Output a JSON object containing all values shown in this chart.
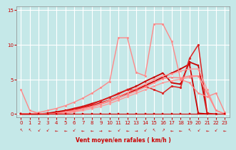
{
  "xlabel": "Vent moyen/en rafales ( km/h )",
  "xlim": [
    -0.5,
    23.5
  ],
  "ylim": [
    -0.5,
    15.5
  ],
  "yticks": [
    0,
    5,
    10,
    15
  ],
  "xticks": [
    0,
    1,
    2,
    3,
    4,
    5,
    6,
    7,
    8,
    9,
    10,
    11,
    12,
    13,
    14,
    15,
    16,
    17,
    18,
    19,
    20,
    21,
    22,
    23
  ],
  "bg_color": "#c5e8e8",
  "grid_color": "#ffffff",
  "series": [
    {
      "comment": "dark red linear line 1 - goes to ~7.5 at x=19",
      "x": [
        0,
        1,
        2,
        3,
        4,
        5,
        6,
        7,
        8,
        9,
        10,
        11,
        12,
        13,
        14,
        15,
        16,
        17,
        18,
        19,
        20,
        21
      ],
      "y": [
        0,
        0,
        0,
        0,
        0.2,
        0.4,
        0.6,
        0.9,
        1.2,
        1.6,
        2.0,
        2.5,
        3.0,
        3.5,
        4.1,
        4.7,
        5.3,
        5.9,
        6.5,
        7.2,
        0.1,
        0
      ],
      "color": "#cc0000",
      "lw": 1.3,
      "marker": "s",
      "ms": 2.0
    },
    {
      "comment": "dark red linear line 2 - slightly different slope to ~7 at x=20",
      "x": [
        0,
        1,
        2,
        3,
        4,
        5,
        6,
        7,
        8,
        9,
        10,
        11,
        12,
        13,
        14,
        15,
        16,
        17,
        18,
        19,
        20,
        21
      ],
      "y": [
        0,
        0,
        0,
        0.1,
        0.3,
        0.5,
        0.8,
        1.1,
        1.5,
        1.9,
        2.4,
        2.9,
        3.5,
        4.0,
        4.7,
        5.3,
        5.9,
        4.5,
        4.3,
        7.5,
        7.0,
        0.1
      ],
      "color": "#cc0000",
      "lw": 1.3,
      "marker": "s",
      "ms": 2.0
    },
    {
      "comment": "medium red jagged - peaks ~4 at x=14, goes to 10 at x=20",
      "x": [
        0,
        1,
        2,
        3,
        4,
        5,
        6,
        7,
        8,
        9,
        10,
        11,
        12,
        13,
        14,
        15,
        16,
        17,
        18,
        19,
        20,
        21,
        22
      ],
      "y": [
        0,
        0,
        0,
        0,
        0.2,
        0.4,
        0.7,
        1.0,
        1.4,
        1.9,
        2.4,
        3.0,
        3.5,
        3.5,
        4.0,
        3.5,
        3.0,
        4.0,
        3.8,
        8.0,
        10.0,
        0.1,
        0
      ],
      "color": "#dd2222",
      "lw": 1.1,
      "marker": "o",
      "ms": 2.0
    },
    {
      "comment": "light pink fan line to ~5.5 at x=20, flat after",
      "x": [
        0,
        1,
        2,
        3,
        4,
        5,
        6,
        7,
        8,
        9,
        10,
        11,
        12,
        13,
        14,
        15,
        16,
        17,
        18,
        19,
        20,
        21,
        22,
        23
      ],
      "y": [
        0,
        0,
        0,
        0,
        0,
        0,
        0.3,
        0.5,
        0.8,
        1.1,
        1.5,
        2.0,
        2.5,
        3.0,
        3.5,
        4.0,
        4.5,
        4.8,
        5.0,
        5.3,
        5.5,
        3.0,
        0.5,
        0
      ],
      "color": "#ff9999",
      "lw": 1.0,
      "marker": "o",
      "ms": 1.8
    },
    {
      "comment": "light pink fan line2 slightly higher",
      "x": [
        0,
        1,
        2,
        3,
        4,
        5,
        6,
        7,
        8,
        9,
        10,
        11,
        12,
        13,
        14,
        15,
        16,
        17,
        18,
        19,
        20,
        21,
        22,
        23
      ],
      "y": [
        0,
        0,
        0,
        0,
        0.1,
        0.3,
        0.5,
        0.8,
        1.1,
        1.5,
        2.0,
        2.5,
        3.1,
        3.7,
        4.3,
        5.0,
        5.5,
        5.8,
        6.2,
        6.5,
        6.5,
        3.5,
        0.5,
        0
      ],
      "color": "#ff9999",
      "lw": 1.0,
      "marker": "o",
      "ms": 1.8
    },
    {
      "comment": "pink starting at 3.5 dropping down then going up - the outlier line",
      "x": [
        0,
        1,
        2,
        3,
        4,
        5,
        6,
        7,
        8,
        9,
        10,
        11,
        12,
        13,
        14,
        15,
        16,
        17,
        18,
        19,
        20,
        21,
        22,
        23
      ],
      "y": [
        3.5,
        0.5,
        0.1,
        0,
        0,
        0.2,
        0.4,
        0.7,
        1.0,
        1.4,
        1.8,
        2.3,
        2.8,
        3.3,
        3.9,
        4.5,
        5.1,
        5.3,
        5.2,
        5.5,
        5.5,
        3.0,
        0.5,
        0
      ],
      "color": "#ff8888",
      "lw": 1.0,
      "marker": "o",
      "ms": 1.8
    },
    {
      "comment": "light pink jagged big peaks: ~11 at x=11, ~11 at x=12, ~13 at x=15, ~13 at x=16",
      "x": [
        0,
        1,
        2,
        3,
        4,
        5,
        6,
        7,
        8,
        9,
        10,
        11,
        12,
        13,
        14,
        15,
        16,
        17,
        18,
        19,
        20,
        21,
        22,
        23
      ],
      "y": [
        0,
        0,
        0.2,
        0.5,
        0.8,
        1.2,
        1.7,
        2.3,
        3.0,
        3.8,
        4.7,
        11.0,
        11.0,
        6.0,
        5.5,
        13.0,
        13.0,
        10.5,
        5.0,
        4.5,
        3.0,
        2.5,
        3.0,
        0.2
      ],
      "color": "#ff8888",
      "lw": 1.0,
      "marker": "o",
      "ms": 1.8
    },
    {
      "comment": "zero line dark red with markers",
      "x": [
        0,
        1,
        2,
        3,
        4,
        5,
        6,
        7,
        8,
        9,
        10,
        11,
        12,
        13,
        14,
        15,
        16,
        17,
        18,
        19,
        20,
        21,
        22,
        23
      ],
      "y": [
        0,
        0,
        0,
        0,
        0,
        0,
        0,
        0,
        0,
        0,
        0,
        0,
        0,
        0,
        0,
        0,
        0,
        0,
        0,
        0,
        0,
        0,
        0,
        0
      ],
      "color": "#cc0000",
      "lw": 0.8,
      "marker": "s",
      "ms": 2.0
    }
  ],
  "arrow_row": [
    "NW",
    "NW",
    "SW",
    "SW",
    "W",
    "W",
    "SW",
    "W",
    "W",
    "E",
    "W",
    "SW",
    "W",
    "E",
    "SW",
    "NW",
    "NE",
    "W",
    "W",
    "NW",
    "SW",
    "W",
    "SW",
    "W"
  ]
}
